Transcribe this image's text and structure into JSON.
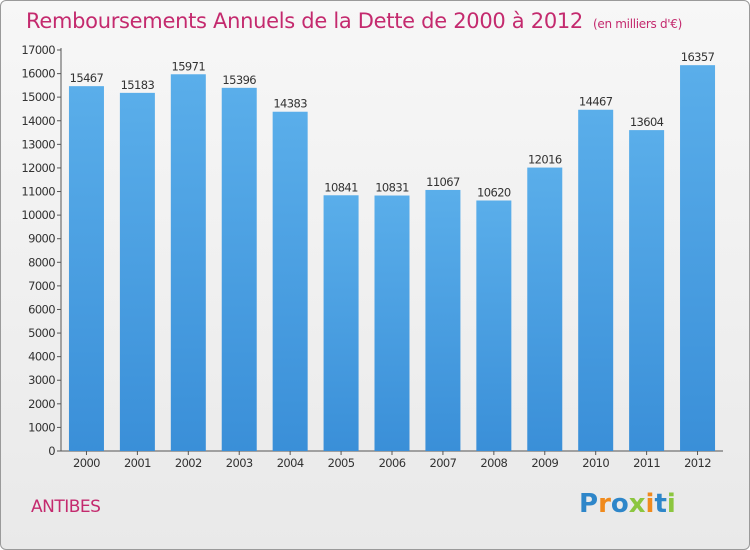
{
  "chart_data": {
    "type": "bar",
    "title": "Remboursements Annuels de la Dette de 2000 à 2012",
    "unit": "(en milliers d'€)",
    "categories": [
      "2000",
      "2001",
      "2002",
      "2003",
      "2004",
      "2005",
      "2006",
      "2007",
      "2008",
      "2009",
      "2010",
      "2011",
      "2012"
    ],
    "values": [
      15467,
      15183,
      15971,
      15396,
      14383,
      10841,
      10831,
      11067,
      10620,
      12016,
      14467,
      13604,
      16357
    ],
    "ylim": [
      0,
      17000
    ],
    "ytick_step": 1000,
    "grid": false,
    "bar_color": "#3a8fd8",
    "bar_color_light": "#5aaeea"
  },
  "footer": {
    "city": "ANTIBES",
    "brand": "Proxiti",
    "brand_colors": [
      "#2e86c9",
      "#f08a1c",
      "#2e86c9",
      "#8cc63f",
      "#f08a1c",
      "#2e86c9",
      "#8cc63f"
    ]
  },
  "colors": {
    "title": "#c42a6e"
  }
}
